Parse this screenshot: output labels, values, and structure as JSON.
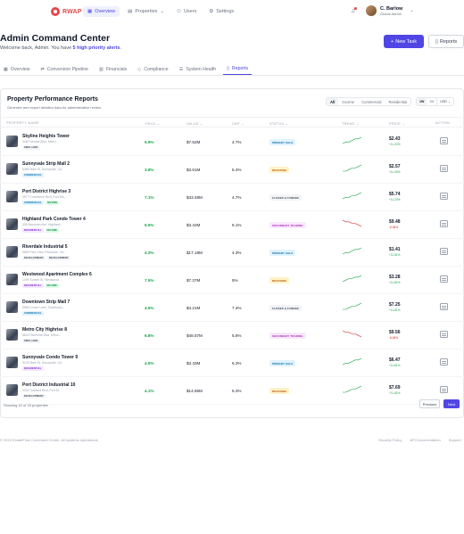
{
  "brand": {
    "name": "RWAP",
    "color": "#e5484d"
  },
  "nav": {
    "links": [
      {
        "label": "Overview",
        "icon": "grid-icon",
        "active": true
      },
      {
        "label": "Properties",
        "icon": "building-icon",
        "active": false
      },
      {
        "label": "Users",
        "icon": "users-icon",
        "active": false
      },
      {
        "label": "Settings",
        "icon": "gear-icon",
        "active": false
      }
    ]
  },
  "user": {
    "name": "C. Barlow",
    "role": "Global Admin"
  },
  "header": {
    "title": "Admin Command Center",
    "welcome_prefix": "Welcome back, Admin. You have ",
    "welcome_highlight": "5 high priority alerts",
    "welcome_suffix": ".",
    "new_task": "New Task",
    "reports": "Reports"
  },
  "tabs": [
    {
      "label": "Overview",
      "icon": "grid-icon"
    },
    {
      "label": "Conversion Pipeline",
      "icon": "pipeline-icon"
    },
    {
      "label": "Financials",
      "icon": "chart-icon"
    },
    {
      "label": "Compliance",
      "icon": "shield-icon"
    },
    {
      "label": "System Health",
      "icon": "server-icon"
    },
    {
      "label": "Reports",
      "icon": "document-icon",
      "active": true
    }
  ],
  "card": {
    "title": "Property Performance Reports",
    "subtitle": "Generate and export detailed data for administrative review.",
    "filters": [
      "All",
      "Income",
      "Commercial",
      "Residential"
    ],
    "units": [
      "1W",
      "1M"
    ],
    "currency": "USD"
  },
  "columns": {
    "name": "PROPERTY NAME",
    "yield": "YIELD",
    "value": "VALUE",
    "cap": "CAP",
    "status": "STATUS",
    "trend": "TREND",
    "price": "PRICE",
    "action": "ACTION"
  },
  "rows": [
    {
      "name": "Skyline Heights Tower",
      "address": "4460 Neutral Blvd, Metro...",
      "tags": [
        [
          "SWB LAND",
          "gray"
        ]
      ],
      "yield": "5.9%",
      "value": "$7.62M",
      "cap": "4.7%",
      "status": "PRIMARY SALE",
      "status_kind": "primary",
      "trend": [
        3,
        4,
        4,
        5,
        6,
        6,
        7
      ],
      "trend_up": true,
      "price": "$2.43",
      "delta": "+11.22%"
    },
    {
      "name": "Sunnyvale Strip Mall 2",
      "address": "8385 Main St, Sunnyvale, CA",
      "tags": [
        [
          "COMMERCIAL",
          "blue"
        ]
      ],
      "yield": "3.8%",
      "value": "$3.61M",
      "cap": "5.4%",
      "status": "REZONING",
      "status_kind": "rezoning",
      "trend": [
        3,
        3,
        4,
        5,
        5,
        6,
        7
      ],
      "trend_up": true,
      "price": "$2.57",
      "delta": "+11.30%"
    },
    {
      "name": "Port District Highrise 3",
      "address": "4977 Commerce Blvd, Port Dis...",
      "tags": [
        [
          "COMMERCIAL",
          "blue"
        ],
        [
          "INCOME",
          "green"
        ]
      ],
      "yield": "7.1%",
      "value": "$43.48M",
      "cap": "4.7%",
      "status": "CLOSED & FUNDED",
      "status_kind": "closed",
      "trend": [
        3,
        4,
        4,
        5,
        5,
        6,
        7
      ],
      "trend_up": true,
      "price": "$5.74",
      "delta": "+11.22%"
    },
    {
      "name": "Highland Park Condo Tower 4",
      "address": "338 Mountain Ave, Highland...",
      "tags": [
        [
          "RESIDENTIAL",
          "purple"
        ],
        [
          "INCOME",
          "green"
        ]
      ],
      "yield": "6.5%",
      "value": "$3.42M",
      "cap": "6.1%",
      "status": "SECONDARY TRADING",
      "status_kind": "secondary",
      "trend": [
        7,
        6,
        6,
        5,
        5,
        4,
        3
      ],
      "trend_up": false,
      "price": "$9.48",
      "delta": "-8.36%"
    },
    {
      "name": "Riverdale Industrial 5",
      "address": "6669 Park View, Riverdale, CA...",
      "tags": [
        [
          "DEVELOPMENT",
          "gray"
        ],
        [
          "DEVELOPMENT",
          "gray"
        ]
      ],
      "yield": "4.3%",
      "value": "$17.18M",
      "cap": "4.3%",
      "status": "PRIMARY SALE",
      "status_kind": "primary",
      "trend": [
        3,
        4,
        4,
        5,
        6,
        6,
        7
      ],
      "trend_up": true,
      "price": "$1.41",
      "delta": "+11.81%"
    },
    {
      "name": "Westwood Apartment Complex 6",
      "address": "1499 Sunset St, Westwood...",
      "tags": [
        [
          "RESIDENTIAL",
          "purple"
        ],
        [
          "INCOME",
          "green"
        ]
      ],
      "yield": "7.5%",
      "value": "$7.37M",
      "cap": "5%",
      "status": "REZONING",
      "status_kind": "rezoning",
      "trend": [
        3,
        4,
        5,
        5,
        6,
        6,
        7
      ],
      "trend_up": true,
      "price": "$3.28",
      "delta": "+11.81%"
    },
    {
      "name": "Downtown Strip Mall 7",
      "address": "8986 Crown Lane, Downtown...",
      "tags": [
        [
          "COMMERCIAL",
          "blue"
        ]
      ],
      "yield": "4.5%",
      "value": "$4.21M",
      "cap": "7.4%",
      "status": "CLOSED & FUNDED",
      "status_kind": "closed",
      "trend": [
        3,
        3,
        4,
        5,
        5,
        6,
        7
      ],
      "trend_up": true,
      "price": "$7.25",
      "delta": "+11.81%"
    },
    {
      "name": "Metro City Highrise 8",
      "address": "8844 Riverside Blvd, Metro...",
      "tags": [
        [
          "SWB LAND",
          "gray"
        ]
      ],
      "yield": "6.8%",
      "value": "$48.57M",
      "cap": "5.6%",
      "status": "SECONDARY TRADING",
      "status_kind": "secondary",
      "trend": [
        7,
        6,
        6,
        5,
        5,
        4,
        3
      ],
      "trend_up": false,
      "price": "$9.56",
      "delta": "-8.48%"
    },
    {
      "name": "Sunnyvale Condo Tower 9",
      "address": "9125 Main St, Sunnyvale, CA",
      "tags": [
        [
          "RESIDENTIAL",
          "purple"
        ]
      ],
      "yield": "4.5%",
      "value": "$3.43M",
      "cap": "6.3%",
      "status": "PRIMARY SALE",
      "status_kind": "primary",
      "trend": [
        3,
        4,
        4,
        5,
        6,
        6,
        7
      ],
      "trend_up": true,
      "price": "$6.47",
      "delta": "+11.81%"
    },
    {
      "name": "Port District Industrial 10",
      "address": "9433 Oakland Blvd, Port Di...",
      "tags": [
        [
          "DEVELOPMENT",
          "gray"
        ]
      ],
      "yield": "4.1%",
      "value": "$14.55M",
      "cap": "5.3%",
      "status": "REZONING",
      "status_kind": "rezoning",
      "trend": [
        3,
        3,
        4,
        5,
        5,
        6,
        7
      ],
      "trend_up": true,
      "price": "$7.69",
      "delta": "+11.81%"
    }
  ],
  "pagination": {
    "showing": "Showing 10 of 25 properties",
    "prev": "Previous",
    "next": "Next"
  },
  "footer": {
    "copyright": "© 2024 EstateFlow Command Center. All systems operational.",
    "links": [
      "Security Policy",
      "API Documentation",
      "Support"
    ]
  },
  "colors": {
    "accent": "#4f46e5",
    "positive": "#16a34a",
    "negative": "#dc2626"
  }
}
